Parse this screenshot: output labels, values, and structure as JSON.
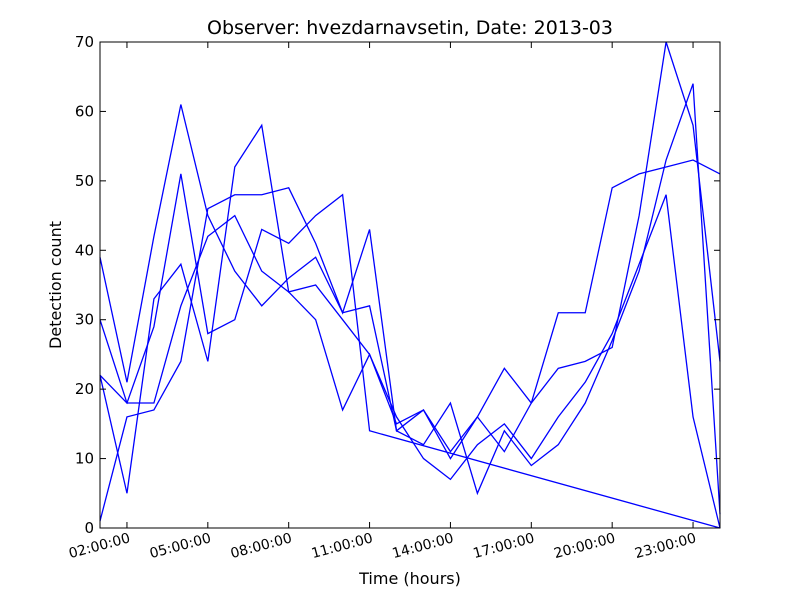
{
  "chart_data": {
    "type": "line",
    "title": "Observer: hvezdarnavsetin, Date: 2013-03",
    "xlabel": "Time (hours)",
    "ylabel": "Detection count",
    "xlim": [
      1,
      24
    ],
    "ylim": [
      0,
      70
    ],
    "yticks": [
      0,
      10,
      20,
      30,
      40,
      50,
      60,
      70
    ],
    "xticks": [
      {
        "x": 2,
        "label": "02:00:00"
      },
      {
        "x": 5,
        "label": "05:00:00"
      },
      {
        "x": 8,
        "label": "08:00:00"
      },
      {
        "x": 11,
        "label": "11:00:00"
      },
      {
        "x": 14,
        "label": "14:00:00"
      },
      {
        "x": 17,
        "label": "17:00:00"
      },
      {
        "x": 20,
        "label": "20:00:00"
      },
      {
        "x": 23,
        "label": "23:00:00"
      }
    ],
    "grid": false,
    "color": "#0000ff",
    "x": [
      1,
      2,
      3,
      4,
      5,
      6,
      7,
      8,
      9,
      10,
      11,
      12,
      13,
      14,
      15,
      16,
      17,
      18,
      19,
      20,
      21,
      22,
      23,
      24
    ],
    "series": [
      {
        "values": [
          39,
          21,
          42,
          61,
          45,
          37,
          32,
          36,
          39,
          31,
          32,
          14,
          17,
          11,
          16,
          11,
          18,
          31,
          31,
          49,
          51,
          52,
          53,
          51
        ]
      },
      {
        "values": [
          22,
          5,
          33,
          38,
          24,
          52,
          58,
          34,
          35,
          30,
          25,
          16,
          10,
          7,
          12,
          15,
          10,
          16,
          21,
          28,
          38,
          48,
          16,
          0
        ]
      },
      {
        "values": [
          30,
          18,
          18,
          32,
          42,
          45,
          37,
          34,
          30,
          17,
          25,
          15,
          17,
          10,
          16,
          23,
          18,
          23,
          24,
          26,
          45,
          70,
          58,
          24
        ]
      },
      {
        "values": [
          1,
          16,
          17,
          24,
          46,
          48,
          48,
          49,
          41,
          31,
          43,
          14,
          12,
          18,
          5,
          14,
          9,
          12,
          18,
          27,
          37,
          53,
          64,
          2
        ]
      },
      {
        "values": [
          22,
          18,
          29,
          51,
          28,
          30,
          43,
          41,
          45,
          48,
          14,
          null,
          null,
          null,
          null,
          null,
          null,
          null,
          null,
          null,
          null,
          null,
          null,
          0
        ]
      }
    ]
  }
}
